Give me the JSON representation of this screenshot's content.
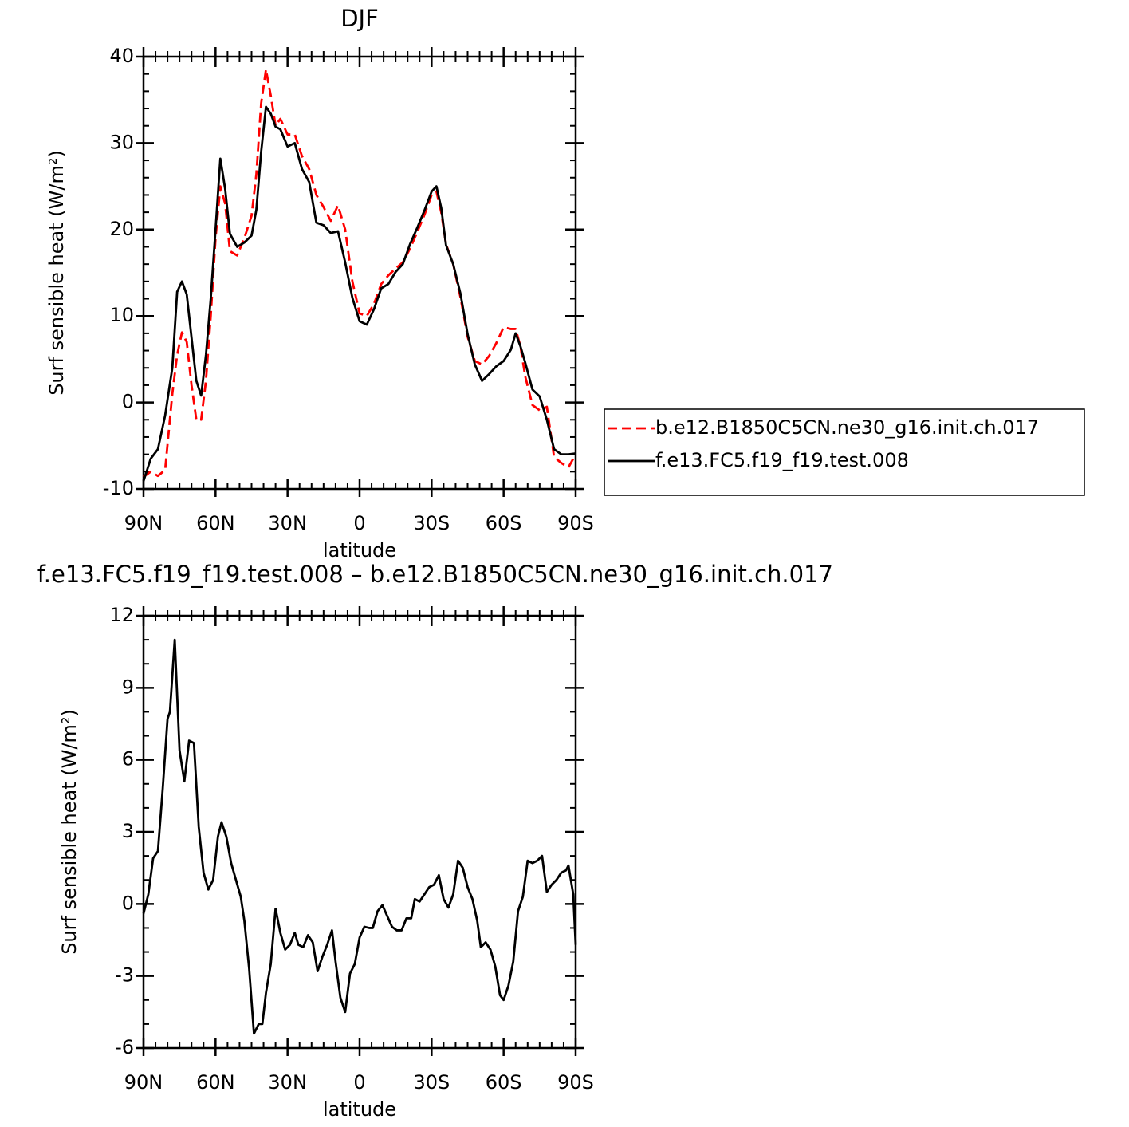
{
  "chart_data": [
    {
      "type": "line",
      "title": "DJF",
      "xlabel": "latitude",
      "ylabel": "Surf sensible heat (W/m²)",
      "x": [
        90,
        87,
        84,
        81,
        78,
        76,
        74,
        72,
        70,
        68,
        66,
        64,
        62,
        60,
        58,
        56,
        54,
        51,
        48,
        45,
        43,
        41,
        39,
        37,
        35,
        33,
        30,
        27,
        24,
        21,
        18,
        15,
        12,
        9,
        6,
        3,
        0,
        -3,
        -6,
        -9,
        -12,
        -15,
        -18,
        -21,
        -24,
        -27,
        -30,
        -32,
        -34,
        -36,
        -39,
        -42,
        -45,
        -48,
        -51,
        -54,
        -57,
        -60,
        -63,
        -65,
        -67,
        -69,
        -72,
        -75,
        -78,
        -81,
        -84,
        -87,
        -90
      ],
      "series": [
        {
          "name": "b.e12.B1850C5CN.ne30_g16.init.ch.017",
          "color": "#ff0000",
          "linestyle": "dashed",
          "values": [
            -8.6,
            -8,
            -8.5,
            -7.8,
            1,
            5.5,
            8.1,
            7,
            2,
            -2,
            -2,
            2.5,
            10,
            19,
            25,
            23,
            17.5,
            17,
            19,
            21.6,
            26.4,
            34.6,
            38.5,
            35.5,
            32,
            32.8,
            31,
            31,
            28.5,
            27,
            24,
            22.6,
            21,
            22.8,
            20,
            14,
            10.3,
            10,
            11.4,
            13.7,
            14.7,
            15.5,
            16.2,
            17.8,
            19.7,
            21.7,
            24,
            24.4,
            22,
            18.3,
            16,
            12.2,
            7.6,
            4.8,
            4.4,
            5.4,
            6.9,
            8.7,
            8.5,
            8.5,
            6.5,
            3,
            -0.3,
            -0.9,
            -0.5,
            -6.3,
            -7,
            -7.5,
            -6
          ]
        },
        {
          "name": "f.e13.FC5.f19_f19.test.008",
          "color": "#000000",
          "linestyle": "solid",
          "values": [
            -9.1,
            -6.5,
            -5.4,
            -1.5,
            4,
            12.8,
            14,
            12.5,
            7.5,
            2.5,
            0.8,
            5.5,
            12,
            20,
            28.2,
            24.7,
            19.5,
            18,
            18.5,
            19.3,
            22.3,
            29,
            34.2,
            33.4,
            31.9,
            31.6,
            29.6,
            30,
            27,
            25.5,
            20.8,
            20.5,
            19.6,
            19.8,
            16.2,
            12.1,
            9.4,
            9,
            10.8,
            13.2,
            13.7,
            15.1,
            16,
            18.3,
            20.2,
            22.2,
            24.4,
            25,
            22.5,
            18.2,
            16,
            12.6,
            7.9,
            4.4,
            2.5,
            3.3,
            4.2,
            4.8,
            6.1,
            8,
            6.5,
            4.6,
            1.5,
            0.7,
            -2,
            -5.4,
            -6,
            -6,
            -5.9
          ]
        }
      ],
      "xlim": [
        90,
        -90
      ],
      "xticks": [
        {
          "value": 90,
          "label": "90N"
        },
        {
          "value": 60,
          "label": "60N"
        },
        {
          "value": 30,
          "label": "30N"
        },
        0,
        {
          "value": -30,
          "label": "30S"
        },
        {
          "value": -60,
          "label": "60S"
        },
        {
          "value": -90,
          "label": "90S"
        }
      ],
      "ylim": [
        -10,
        40
      ],
      "yticks": [
        -10,
        0,
        10,
        20,
        30,
        40
      ],
      "legend": "right"
    },
    {
      "type": "line",
      "title": "f.e13.FC5.f19_f19.test.008 – b.e12.B1850C5CN.ne30_g16.init.ch.017",
      "xlabel": "latitude",
      "ylabel": "Surf sensible heat (W/m²)",
      "x": [
        90,
        88,
        86,
        84,
        82,
        80,
        79,
        77,
        75,
        73,
        71,
        69,
        67,
        65,
        63,
        61,
        59,
        57.5,
        55.5,
        53.5,
        51.5,
        49.5,
        48,
        46,
        44,
        42,
        40.5,
        39,
        37,
        35,
        33,
        31,
        29,
        27,
        25.5,
        23.5,
        21.5,
        19.5,
        17.5,
        15.5,
        13.5,
        11.5,
        10,
        8,
        6,
        4,
        2,
        0,
        -2,
        -4,
        -5.5,
        -7.5,
        -9.5,
        -11.5,
        -13.5,
        -15.5,
        -17.5,
        -19.5,
        -21.5,
        -23,
        -25,
        -27,
        -29,
        -31,
        -33,
        -35,
        -37,
        -39,
        -41,
        -43,
        -45,
        -47,
        -49,
        -50.5,
        -52.5,
        -54.5,
        -56.5,
        -58.5,
        -60,
        -62,
        -64,
        -66,
        -68,
        -70,
        -72,
        -74,
        -76,
        -78,
        -80,
        -82,
        -84,
        -86,
        -87,
        -89,
        -90
      ],
      "series": [
        {
          "color": "#000000",
          "linestyle": "solid",
          "values": [
            -0.4,
            0.4,
            1.9,
            2.2,
            4.8,
            7.7,
            8,
            11,
            6.4,
            5.1,
            6.8,
            6.7,
            3.2,
            1.3,
            0.6,
            1,
            2.8,
            3.4,
            2.8,
            1.7,
            1,
            0.3,
            -0.7,
            -2.7,
            -5.4,
            -5,
            -5,
            -3.7,
            -2.5,
            -0.2,
            -1.2,
            -1.9,
            -1.7,
            -1.2,
            -1.7,
            -1.8,
            -1.3,
            -1.6,
            -2.8,
            -2.2,
            -1.7,
            -1.1,
            -2.4,
            -3.9,
            -4.5,
            -2.9,
            -2.5,
            -1.4,
            -0.95,
            -1,
            -1,
            -0.3,
            -0.05,
            -0.5,
            -0.95,
            -1.1,
            -1.1,
            -0.6,
            -0.6,
            0.2,
            0.1,
            0.4,
            0.7,
            0.8,
            1.2,
            0.2,
            -0.15,
            0.4,
            1.8,
            1.5,
            0.7,
            0.2,
            -0.7,
            -1.8,
            -1.6,
            -1.9,
            -2.6,
            -3.8,
            -4,
            -3.4,
            -2.4,
            -0.3,
            0.3,
            1.8,
            1.7,
            1.8,
            2,
            0.5,
            0.8,
            1,
            1.3,
            1.4,
            1.6,
            0.4,
            -1.7
          ]
        }
      ],
      "xlim": [
        90,
        -90
      ],
      "xticks": [
        {
          "value": 90,
          "label": "90N"
        },
        {
          "value": 60,
          "label": "60N"
        },
        {
          "value": 30,
          "label": "30N"
        },
        0,
        {
          "value": -30,
          "label": "30S"
        },
        {
          "value": -60,
          "label": "60S"
        },
        {
          "value": -90,
          "label": "90S"
        }
      ],
      "ylim": [
        -6,
        12
      ],
      "yticks": [
        -6,
        -3,
        0,
        3,
        6,
        9,
        12
      ]
    }
  ]
}
